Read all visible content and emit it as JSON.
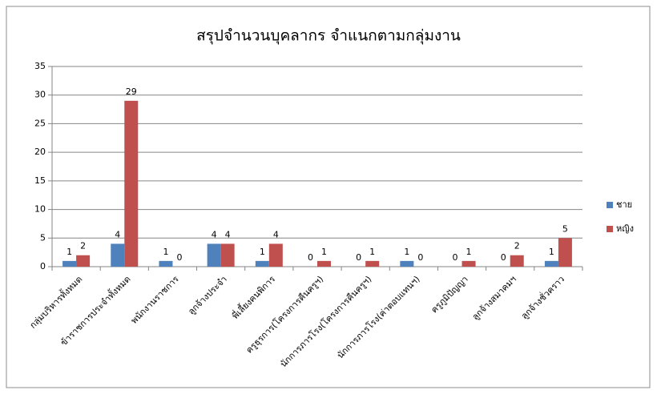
{
  "chart_data": {
    "type": "bar",
    "title": "สรุปจำนวนบุคลากร จำแนกตามกลุ่มงาน",
    "categories": [
      "กลุ่มบริหารทั้งหมด",
      "ข้าราชการประจำทั้งหมด",
      "พนักงานราชการ",
      "ลูกจ้างประจำ",
      "พี่เลี้ยงคนพิการ",
      "ครูธุรการ(โครงการคืนครูฯ)",
      "นักการภารโรง(โครงการคืนครูฯ)",
      "นักการภารโรง(ค่าตอบแทนฯ)",
      "ครูภูมิปัญญา",
      "ลูกจ้างสมาคมฯ",
      "ลูกจ้างชั่วคราว"
    ],
    "series": [
      {
        "name": "ชาย",
        "color": "#4f81bd",
        "values": [
          1,
          4,
          1,
          4,
          1,
          0,
          0,
          1,
          0,
          0,
          1
        ]
      },
      {
        "name": "หญิง",
        "color": "#c0504d",
        "values": [
          2,
          29,
          0,
          4,
          4,
          1,
          1,
          0,
          1,
          2,
          5
        ]
      }
    ],
    "ylim": [
      0,
      35
    ],
    "yticks": [
      0,
      5,
      10,
      15,
      20,
      25,
      30,
      35
    ],
    "grid": true,
    "legend": "right"
  }
}
